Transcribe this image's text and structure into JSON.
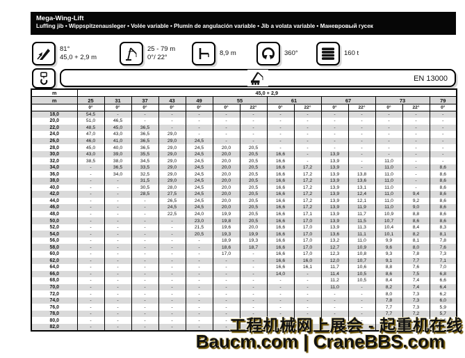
{
  "header": {
    "title": "Mega-Wing-Lift",
    "subtitle": "Luffing jib • Wippspitzenausleger • Volée variable • Plumín de angulación variable • Jib a volata variable • Маневровый гусек"
  },
  "specs": {
    "boom_angle": {
      "line1": "81°",
      "line2": "45,0 + 2,9 m"
    },
    "jib_length": {
      "line1": "25 - 79 m",
      "line2": "0°/ 22°"
    },
    "tail_radius": {
      "value": "8,9 m"
    },
    "slewing": {
      "value": "360°"
    },
    "counterweight": {
      "value": "160 t"
    }
  },
  "standard_bar": {
    "label": "EN 13000"
  },
  "table": {
    "unit_label": "m",
    "radius_label": "m",
    "boom_config": "45,0 + 2,9",
    "columns": [
      {
        "length": "25",
        "angles": [
          "0°"
        ]
      },
      {
        "length": "31",
        "angles": [
          "0°"
        ]
      },
      {
        "length": "37",
        "angles": [
          "0°"
        ]
      },
      {
        "length": "43",
        "angles": [
          "0°"
        ]
      },
      {
        "length": "49",
        "angles": [
          "0°"
        ]
      },
      {
        "length": "55",
        "angles": [
          "0°",
          "22°"
        ]
      },
      {
        "length": "61",
        "angles": [
          "0°",
          "22°"
        ]
      },
      {
        "length": "67",
        "angles": [
          "0°",
          "22°"
        ]
      },
      {
        "length": "73",
        "angles": [
          "0°",
          "22°"
        ]
      },
      {
        "length": "79",
        "angles": [
          "0°"
        ]
      }
    ],
    "rows": [
      {
        "radius": "18,0",
        "values": [
          "54,5",
          "-",
          "-",
          "-",
          "-",
          "-",
          "-",
          "-",
          "-",
          "-",
          "-",
          "-",
          "-",
          "-"
        ]
      },
      {
        "radius": "20,0",
        "values": [
          "51,0",
          "46,5",
          "-",
          "-",
          "-",
          "-",
          "-",
          "-",
          "-",
          "-",
          "-",
          "-",
          "-",
          "-"
        ]
      },
      {
        "radius": "22,0",
        "values": [
          "48,5",
          "45,0",
          "36,5",
          "-",
          "-",
          "-",
          "-",
          "-",
          "-",
          "-",
          "-",
          "-",
          "-",
          "-"
        ]
      },
      {
        "radius": "24,0",
        "values": [
          "47,0",
          "43,0",
          "36,5",
          "29,0",
          "-",
          "-",
          "-",
          "-",
          "-",
          "-",
          "-",
          "-",
          "-",
          "-"
        ]
      },
      {
        "radius": "26,0",
        "values": [
          "46,0",
          "41,0",
          "36,5",
          "29,0",
          "24,5",
          "-",
          "-",
          "-",
          "-",
          "-",
          "-",
          "-",
          "-",
          "-"
        ]
      },
      {
        "radius": "28,0",
        "values": [
          "45,0",
          "40,0",
          "36,5",
          "29,0",
          "24,5",
          "20,0",
          "20,5",
          "-",
          "-",
          "-",
          "-",
          "-",
          "-",
          "-"
        ]
      },
      {
        "radius": "30,0",
        "values": [
          "43,0",
          "39,0",
          "35,5",
          "29,0",
          "24,5",
          "20,0",
          "20,5",
          "16,6",
          "-",
          "13,9",
          "-",
          "-",
          "-",
          "-"
        ]
      },
      {
        "radius": "32,0",
        "values": [
          "38,5",
          "38,0",
          "34,5",
          "29,0",
          "24,5",
          "20,0",
          "20,5",
          "16,6",
          "-",
          "13,9",
          "-",
          "11,0",
          "-",
          "-"
        ]
      },
      {
        "radius": "34,0",
        "values": [
          "-",
          "36,5",
          "33,5",
          "29,0",
          "24,5",
          "20,0",
          "20,5",
          "16,6",
          "17,2",
          "13,9",
          "-",
          "11,0",
          "-",
          "8,6"
        ]
      },
      {
        "radius": "36,0",
        "values": [
          "-",
          "34,0",
          "32,5",
          "29,0",
          "24,5",
          "20,0",
          "20,5",
          "16,6",
          "17,2",
          "13,9",
          "13,8",
          "11,0",
          "-",
          "8,6"
        ]
      },
      {
        "radius": "38,0",
        "values": [
          "-",
          "-",
          "31,5",
          "29,0",
          "24,5",
          "20,0",
          "20,5",
          "16,6",
          "17,2",
          "13,9",
          "13,6",
          "11,0",
          "-",
          "8,6"
        ]
      },
      {
        "radius": "40,0",
        "values": [
          "-",
          "-",
          "30,5",
          "28,0",
          "24,5",
          "20,0",
          "20,5",
          "16,6",
          "17,2",
          "13,9",
          "13,1",
          "11,0",
          "-",
          "8,6"
        ]
      },
      {
        "radius": "42,0",
        "values": [
          "-",
          "-",
          "28,5",
          "27,5",
          "24,5",
          "20,0",
          "20,5",
          "16,6",
          "17,2",
          "13,9",
          "12,4",
          "11,0",
          "9,4",
          "8,6"
        ]
      },
      {
        "radius": "44,0",
        "values": [
          "-",
          "-",
          "-",
          "26,5",
          "24,5",
          "20,0",
          "20,5",
          "16,6",
          "17,2",
          "13,9",
          "12,1",
          "11,0",
          "9,2",
          "8,6"
        ]
      },
      {
        "radius": "46,0",
        "values": [
          "-",
          "-",
          "-",
          "24,5",
          "24,5",
          "20,0",
          "20,5",
          "16,6",
          "17,2",
          "13,9",
          "11,9",
          "11,0",
          "9,0",
          "8,6"
        ]
      },
      {
        "radius": "48,0",
        "values": [
          "-",
          "-",
          "-",
          "22,5",
          "24,0",
          "19,9",
          "20,5",
          "16,6",
          "17,1",
          "13,9",
          "11,7",
          "10,9",
          "8,8",
          "8,6"
        ]
      },
      {
        "radius": "50,0",
        "values": [
          "-",
          "-",
          "-",
          "-",
          "23,0",
          "19,8",
          "20,5",
          "16,6",
          "17,0",
          "13,9",
          "11,5",
          "10,7",
          "8,6",
          "8,6"
        ]
      },
      {
        "radius": "52,0",
        "values": [
          "-",
          "-",
          "-",
          "-",
          "21,5",
          "19,6",
          "20,0",
          "16,6",
          "17,0",
          "13,9",
          "11,3",
          "10,4",
          "8,4",
          "8,3"
        ]
      },
      {
        "radius": "54,0",
        "values": [
          "-",
          "-",
          "-",
          "-",
          "20,5",
          "19,3",
          "19,9",
          "16,6",
          "17,0",
          "13,6",
          "11,1",
          "10,1",
          "8,2",
          "8,1"
        ]
      },
      {
        "radius": "56,0",
        "values": [
          "-",
          "-",
          "-",
          "-",
          "-",
          "18,9",
          "19,3",
          "16,6",
          "17,0",
          "13,2",
          "11,0",
          "9,9",
          "8,1",
          "7,8"
        ]
      },
      {
        "radius": "58,0",
        "values": [
          "-",
          "-",
          "-",
          "-",
          "-",
          "18,6",
          "18,7",
          "16,6",
          "17,0",
          "12,7",
          "10,9",
          "9,6",
          "8,0",
          "7,6"
        ]
      },
      {
        "radius": "60,0",
        "values": [
          "-",
          "-",
          "-",
          "-",
          "-",
          "17,0",
          "-",
          "16,6",
          "17,0",
          "12,3",
          "10,8",
          "9,3",
          "7,8",
          "7,3"
        ]
      },
      {
        "radius": "62,0",
        "values": [
          "-",
          "-",
          "-",
          "-",
          "-",
          "-",
          "-",
          "16,6",
          "16,0",
          "12,0",
          "10,7",
          "9,1",
          "7,7",
          "7,1"
        ]
      },
      {
        "radius": "64,0",
        "values": [
          "-",
          "-",
          "-",
          "-",
          "-",
          "-",
          "-",
          "16,6",
          "16,1",
          "11,7",
          "10,6",
          "8,8",
          "7,6",
          "7,0"
        ]
      },
      {
        "radius": "66,0",
        "values": [
          "-",
          "-",
          "-",
          "-",
          "-",
          "-",
          "-",
          "14,0",
          "-",
          "11,4",
          "10,5",
          "8,6",
          "7,5",
          "6,8"
        ]
      },
      {
        "radius": "68,0",
        "values": [
          "-",
          "-",
          "-",
          "-",
          "-",
          "-",
          "-",
          "-",
          "-",
          "11,2",
          "10,5",
          "8,4",
          "7,4",
          "6,6"
        ]
      },
      {
        "radius": "70,0",
        "values": [
          "-",
          "-",
          "-",
          "-",
          "-",
          "-",
          "-",
          "-",
          "-",
          "11,0",
          "-",
          "8,2",
          "7,4",
          "6,4"
        ]
      },
      {
        "radius": "72,0",
        "values": [
          "-",
          "-",
          "-",
          "-",
          "-",
          "-",
          "-",
          "-",
          "-",
          "-",
          "-",
          "8,0",
          "7,3",
          "6,2"
        ]
      },
      {
        "radius": "74,0",
        "values": [
          "-",
          "-",
          "-",
          "-",
          "-",
          "-",
          "-",
          "-",
          "-",
          "-",
          "-",
          "7,8",
          "7,3",
          "6,0"
        ]
      },
      {
        "radius": "76,0",
        "values": [
          "-",
          "-",
          "-",
          "-",
          "-",
          "-",
          "-",
          "-",
          "-",
          "-",
          "-",
          "7,7",
          "7,3",
          "5,9"
        ]
      },
      {
        "radius": "78,0",
        "values": [
          "-",
          "-",
          "-",
          "-",
          "-",
          "-",
          "-",
          "-",
          "-",
          "-",
          "-",
          "7,7",
          "7,2",
          "5,7"
        ]
      },
      {
        "radius": "80,0",
        "values": [
          "-",
          "-",
          "-",
          "-",
          "-",
          "-",
          "-",
          "-",
          "-",
          "-",
          "-",
          "-",
          "-",
          "5,6"
        ]
      },
      {
        "radius": "82,0",
        "values": [
          "-",
          "-",
          "-",
          "-",
          "-",
          "-",
          "-",
          "-",
          "-",
          "-",
          "-",
          "-",
          "-",
          "-"
        ]
      }
    ]
  },
  "watermark": {
    "line1": "工程机械网上展会 - 起重机在线",
    "line2": "Baucm.com | CraneBBS.com",
    "color": "#cd9717"
  }
}
